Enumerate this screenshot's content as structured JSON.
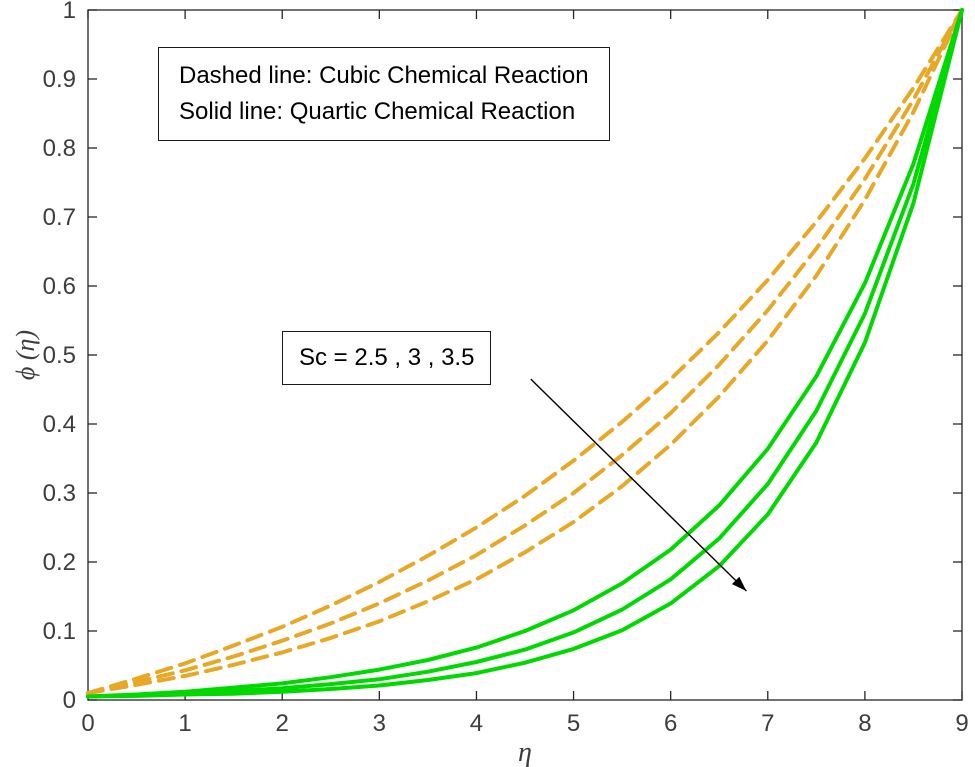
{
  "page": {
    "background": "#ffffff"
  },
  "chart_data": {
    "type": "line",
    "title": "",
    "xlabel": "η",
    "ylabel": "ϕ (η)",
    "xlim": [
      0,
      9
    ],
    "ylim": [
      0,
      1
    ],
    "xticks": [
      0,
      1,
      2,
      3,
      4,
      5,
      6,
      7,
      8,
      9
    ],
    "xtick_labels": [
      "0",
      "1",
      "2",
      "3",
      "4",
      "5",
      "6",
      "7",
      "8",
      "9"
    ],
    "yticks": [
      0,
      0.1,
      0.2,
      0.3,
      0.4,
      0.5,
      0.6,
      0.7,
      0.8,
      0.9,
      1
    ],
    "ytick_labels": [
      "0",
      "0.1",
      "0.2",
      "0.3",
      "0.4",
      "0.5",
      "0.6",
      "0.7",
      "0.8",
      "0.9",
      "1"
    ],
    "grid": false,
    "box": true,
    "legend_position": "none",
    "axis_color": "#262626",
    "tick_label_color": "#3d3d3d",
    "dashed_color": "#E8A826",
    "solid_color": "#00D900",
    "x": [
      0,
      0.5,
      1,
      1.5,
      2,
      2.5,
      3,
      3.5,
      4,
      4.5,
      5,
      5.5,
      6,
      6.5,
      7,
      7.5,
      8,
      8.5,
      9
    ],
    "series": [
      {
        "name": "cubic-Sc-2.5",
        "group": "Cubic Chemical Reaction",
        "Sc": 2.5,
        "style": "dashed",
        "color": "#E8A826",
        "values": [
          0.01,
          0.031,
          0.053,
          0.079,
          0.106,
          0.137,
          0.171,
          0.209,
          0.25,
          0.296,
          0.347,
          0.403,
          0.465,
          0.533,
          0.609,
          0.693,
          0.785,
          0.887,
          1.0
        ]
      },
      {
        "name": "cubic-Sc-3",
        "group": "Cubic Chemical Reaction",
        "Sc": 3,
        "style": "dashed",
        "color": "#E8A826",
        "values": [
          0.01,
          0.026,
          0.043,
          0.063,
          0.086,
          0.111,
          0.14,
          0.173,
          0.21,
          0.253,
          0.3,
          0.355,
          0.416,
          0.486,
          0.565,
          0.654,
          0.755,
          0.87,
          1.0
        ]
      },
      {
        "name": "cubic-Sc-3.5",
        "group": "Cubic Chemical Reaction",
        "Sc": 3.5,
        "style": "dashed",
        "color": "#E8A826",
        "values": [
          0.01,
          0.022,
          0.035,
          0.051,
          0.069,
          0.09,
          0.114,
          0.143,
          0.175,
          0.214,
          0.258,
          0.31,
          0.37,
          0.44,
          0.521,
          0.615,
          0.725,
          0.852,
          1.0
        ]
      },
      {
        "name": "quartic-Sc-2.5",
        "group": "Quartic Chemical Reaction",
        "Sc": 2.5,
        "style": "solid",
        "color": "#00D900",
        "values": [
          0.005,
          0.008,
          0.012,
          0.018,
          0.024,
          0.033,
          0.044,
          0.058,
          0.076,
          0.1,
          0.13,
          0.169,
          0.218,
          0.282,
          0.364,
          0.469,
          0.604,
          0.777,
          1.0
        ]
      },
      {
        "name": "quartic-Sc-3",
        "group": "Quartic Chemical Reaction",
        "Sc": 3,
        "style": "solid",
        "color": "#00D900",
        "values": [
          0.005,
          0.007,
          0.009,
          0.013,
          0.017,
          0.023,
          0.03,
          0.041,
          0.055,
          0.073,
          0.098,
          0.131,
          0.175,
          0.234,
          0.313,
          0.419,
          0.56,
          0.748,
          1.0
        ]
      },
      {
        "name": "quartic-Sc-3.5",
        "group": "Quartic Chemical Reaction",
        "Sc": 3.5,
        "style": "solid",
        "color": "#00D900",
        "values": [
          0.005,
          0.006,
          0.008,
          0.009,
          0.012,
          0.016,
          0.021,
          0.029,
          0.039,
          0.054,
          0.074,
          0.101,
          0.14,
          0.194,
          0.269,
          0.373,
          0.518,
          0.72,
          1.0
        ]
      }
    ],
    "annotations": {
      "legend_box": {
        "lines": [
          "Dashed line: Cubic Chemical Reaction",
          "Solid line: Quartic Chemical Reaction"
        ]
      },
      "sc_label": {
        "text": "Sc = 2.5 , 3 , 3.5"
      },
      "arrow": {
        "x1": 4.56,
        "y1": 0.465,
        "x2": 6.78,
        "y2": 0.158
      }
    }
  }
}
